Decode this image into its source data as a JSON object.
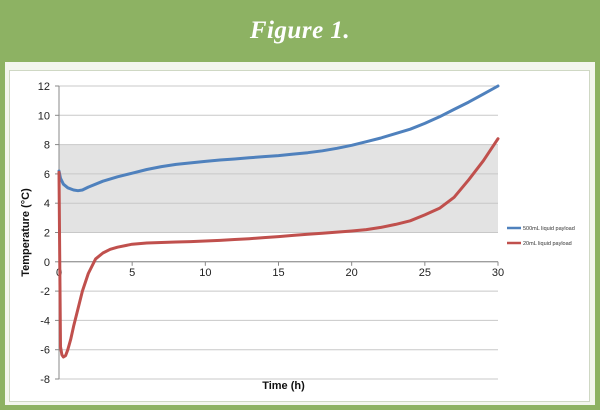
{
  "figure": {
    "title": "Figure 1."
  },
  "chart_data": {
    "type": "line",
    "xlabel": "Time (h)",
    "ylabel": "Temperature (°C)",
    "xlim": [
      0,
      30
    ],
    "ylim": [
      -8,
      12
    ],
    "xticks": [
      0,
      5,
      10,
      15,
      20,
      25,
      30
    ],
    "yticks": [
      -8,
      -6,
      -4,
      -2,
      0,
      2,
      4,
      6,
      8,
      10,
      12
    ],
    "grid": "horizontal",
    "shaded_band": {
      "from": 2,
      "to": 8,
      "color": "#e3e3e3"
    },
    "legend_position": "right",
    "series": [
      {
        "name": "500mL liquid payload",
        "color": "#4f81bd",
        "x": [
          0,
          0.1,
          0.3,
          0.6,
          1.0,
          1.3,
          1.6,
          2,
          3,
          4,
          5,
          6,
          7,
          8,
          9,
          10,
          11,
          12,
          13,
          14,
          15,
          16,
          17,
          18,
          19,
          20,
          21,
          22,
          23,
          24,
          25,
          26,
          27,
          28,
          29,
          30
        ],
        "y": [
          6.2,
          5.7,
          5.3,
          5.05,
          4.9,
          4.85,
          4.9,
          5.1,
          5.5,
          5.8,
          6.05,
          6.3,
          6.5,
          6.65,
          6.75,
          6.85,
          6.95,
          7.02,
          7.1,
          7.18,
          7.25,
          7.35,
          7.45,
          7.58,
          7.75,
          7.95,
          8.2,
          8.45,
          8.75,
          9.05,
          9.45,
          9.9,
          10.4,
          10.9,
          11.45,
          12.0
        ]
      },
      {
        "name": "20mL liquid payload",
        "color": "#c0504d",
        "x": [
          0,
          0.05,
          0.1,
          0.2,
          0.3,
          0.45,
          0.6,
          0.8,
          1.0,
          1.3,
          1.6,
          2.0,
          2.5,
          3,
          3.5,
          4,
          5,
          6,
          7,
          8,
          9,
          10,
          11,
          12,
          13,
          14,
          15,
          16,
          17,
          18,
          19,
          20,
          21,
          22,
          23,
          24,
          25,
          26,
          27,
          28,
          29,
          30
        ],
        "y": [
          6.1,
          0.5,
          -5.8,
          -6.35,
          -6.5,
          -6.4,
          -6.0,
          -5.3,
          -4.4,
          -3.2,
          -2.0,
          -0.8,
          0.2,
          0.6,
          0.85,
          1.0,
          1.2,
          1.28,
          1.32,
          1.35,
          1.38,
          1.42,
          1.46,
          1.52,
          1.58,
          1.65,
          1.72,
          1.8,
          1.88,
          1.95,
          2.03,
          2.1,
          2.2,
          2.35,
          2.55,
          2.8,
          3.2,
          3.65,
          4.4,
          5.6,
          6.9,
          8.4
        ]
      }
    ]
  }
}
